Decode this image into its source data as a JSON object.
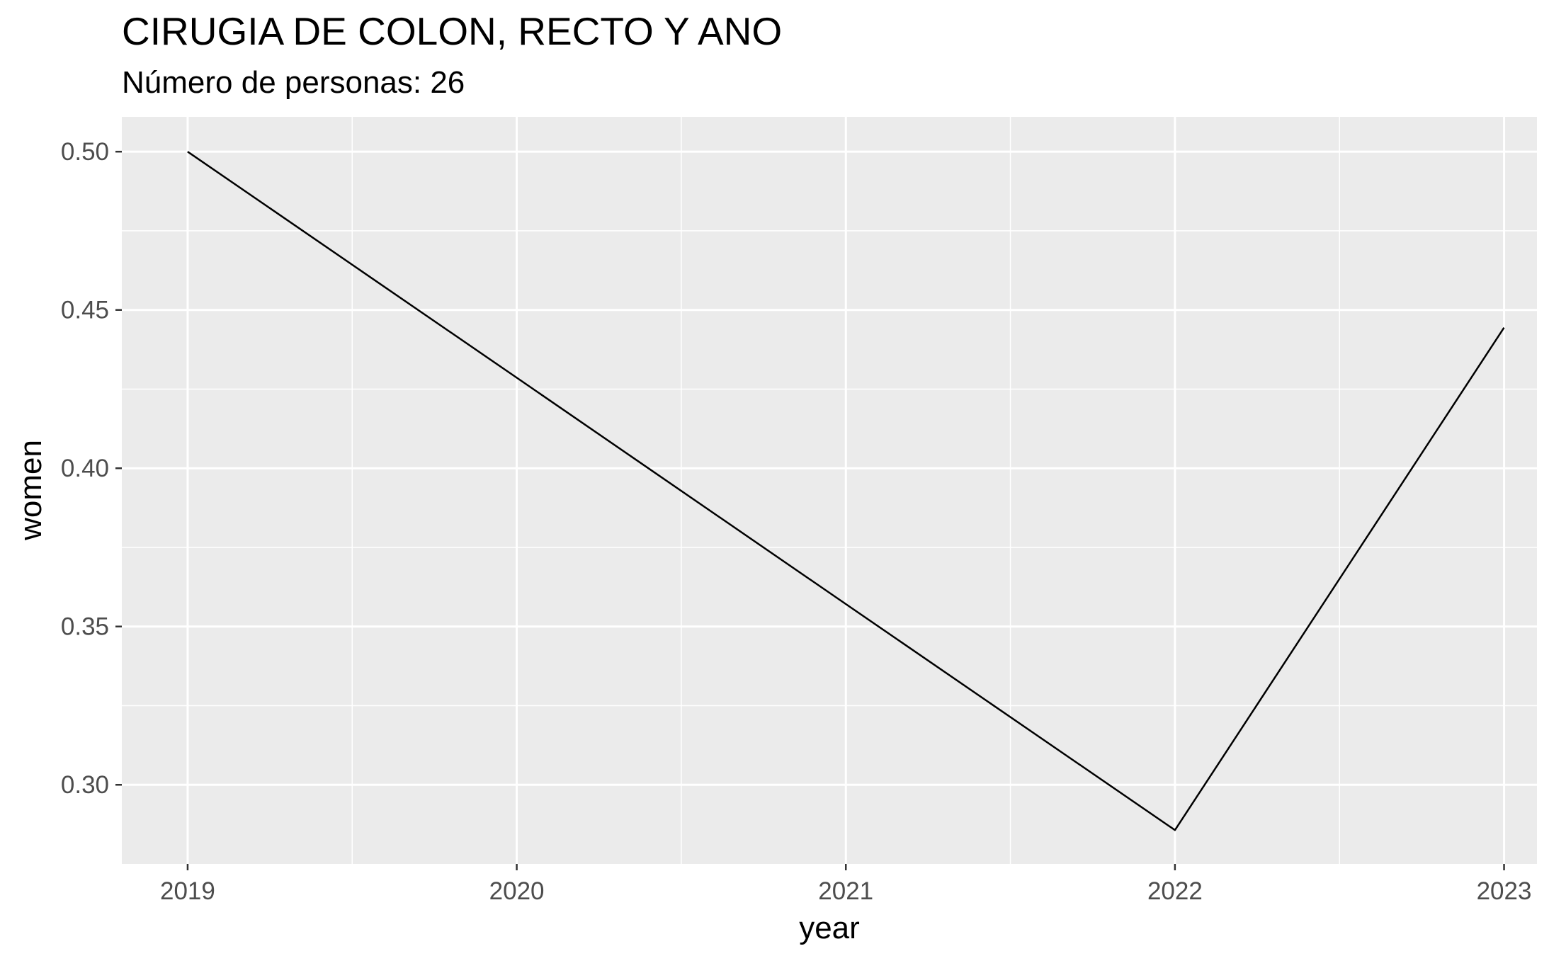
{
  "chart_data": {
    "type": "line",
    "title": "CIRUGIA DE COLON, RECTO Y ANO",
    "subtitle": "Número de personas: 26",
    "xlabel": "year",
    "ylabel": "women",
    "x": [
      2019,
      2020,
      2021,
      2022,
      2023
    ],
    "x_tick_labels": [
      "2019",
      "2020",
      "2021",
      "2022",
      "2023"
    ],
    "series": [
      {
        "values": [
          0.5,
          0.4286,
          0.3571,
          0.2857,
          0.4444
        ]
      }
    ],
    "y_ticks": [
      0.3,
      0.35,
      0.4,
      0.45,
      0.5
    ],
    "y_tick_labels": [
      "0.30",
      "0.35",
      "0.40",
      "0.45",
      "0.50"
    ],
    "xlim": [
      2018.8,
      2023.1
    ],
    "ylim": [
      0.275,
      0.511
    ],
    "grid": true,
    "legend": "none",
    "colors": {
      "panel_background": "#ebebeb",
      "grid_line": "#ffffff",
      "series_line": "#000000",
      "tick_label": "#4d4d4d",
      "tick_mark": "#333333"
    }
  }
}
